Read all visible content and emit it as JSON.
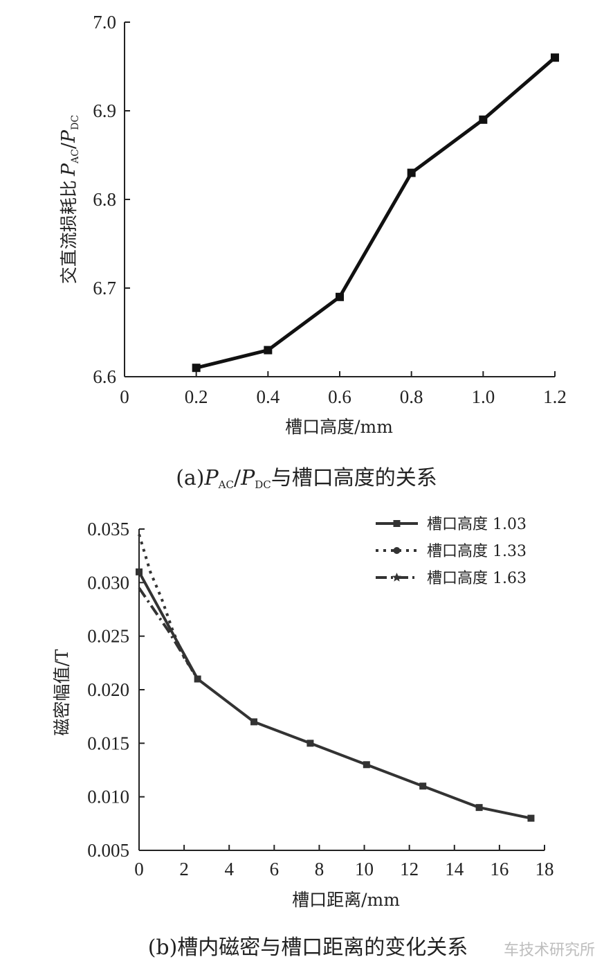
{
  "chart_data": [
    {
      "type": "line",
      "x": [
        0.2,
        0.4,
        0.6,
        0.8,
        1.0,
        1.2
      ],
      "series": [
        {
          "values": [
            6.61,
            6.63,
            6.69,
            6.83,
            6.89,
            6.96
          ],
          "marker": "square",
          "color": "#111111"
        }
      ],
      "xlim": [
        0,
        1.2
      ],
      "ylim": [
        6.6,
        7.0
      ],
      "xticks": [
        "0",
        "0.2",
        "0.4",
        "0.6",
        "0.8",
        "1.0",
        "1.2"
      ],
      "yticks": [
        "6.6",
        "6.7",
        "6.8",
        "6.9",
        "7.0"
      ],
      "xlabel": "槽口高度/mm",
      "ylabel": "交直流损耗比",
      "ylabel_symbol": {
        "p1": "P",
        "s1": "AC",
        "slash": "/",
        "p2": "P",
        "s2": "DC"
      },
      "caption": {
        "prefix": "(a)",
        "p1": "P",
        "s1": "AC",
        "slash": "/",
        "p2": "P",
        "s2": "DC",
        "suffix": "与槽口高度的关系"
      },
      "grid": false
    },
    {
      "type": "line",
      "xlim": [
        0,
        18
      ],
      "ylim": [
        0.005,
        0.035
      ],
      "xticks": [
        "0",
        "2",
        "4",
        "6",
        "8",
        "10",
        "12",
        "14",
        "16",
        "18"
      ],
      "yticks": [
        "0.005",
        "0.010",
        "0.015",
        "0.020",
        "0.025",
        "0.030",
        "0.035"
      ],
      "xlabel": "槽口距离/mm",
      "ylabel": "磁密幅值/T",
      "legend_position": "top-right",
      "series": [
        {
          "name": "槽口高度 1.03",
          "style": "solid",
          "marker": "square",
          "color": "#333333",
          "x": [
            0,
            2.6,
            5.1,
            7.6,
            10.1,
            12.6,
            15.1,
            17.4
          ],
          "values": [
            0.031,
            0.021,
            0.017,
            0.015,
            0.013,
            0.011,
            0.009,
            0.008
          ]
        },
        {
          "name": "槽口高度 1.33",
          "style": "dotted",
          "marker": "circle",
          "color": "#333333",
          "x": [
            0,
            0.5,
            1.0,
            1.5,
            2.0,
            2.6
          ],
          "values": [
            0.0345,
            0.031,
            0.0285,
            0.0255,
            0.023,
            0.021
          ]
        },
        {
          "name": "槽口高度 1.63",
          "style": "dash-dot",
          "marker": "star",
          "color": "#333333",
          "x": [
            0,
            1.3,
            2.6
          ],
          "values": [
            0.0295,
            0.0255,
            0.021
          ]
        }
      ],
      "caption": "(b)槽内磁密与槽口距离的变化关系",
      "grid": false
    }
  ],
  "watermark": "车技术研究所"
}
